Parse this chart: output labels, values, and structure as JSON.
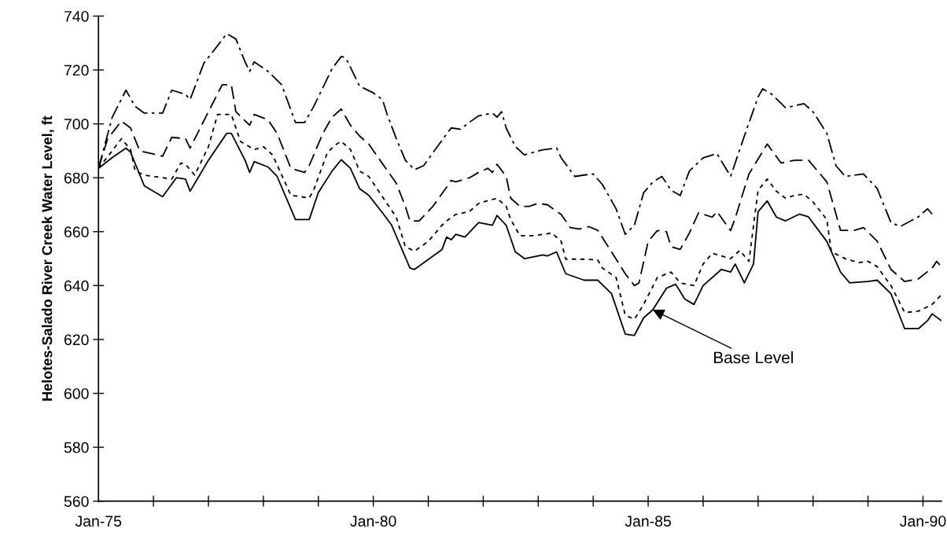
{
  "chart_data": {
    "type": "line",
    "ylabel": "Helotes-Salado River Creek Water Level, ft",
    "xlim": [
      "1975-01",
      "1990-05"
    ],
    "ylim": [
      560,
      740
    ],
    "xticks": [
      {
        "value": "1975-01",
        "label": "Jan-75"
      },
      {
        "value": "1976-01",
        "label": null
      },
      {
        "value": "1977-01",
        "label": null
      },
      {
        "value": "1978-01",
        "label": null
      },
      {
        "value": "1979-01",
        "label": null
      },
      {
        "value": "1980-01",
        "label": "Jan-80"
      },
      {
        "value": "1981-01",
        "label": null
      },
      {
        "value": "1982-01",
        "label": null
      },
      {
        "value": "1983-01",
        "label": null
      },
      {
        "value": "1984-01",
        "label": null
      },
      {
        "value": "1985-01",
        "label": "Jan-85"
      },
      {
        "value": "1986-01",
        "label": null
      },
      {
        "value": "1987-01",
        "label": null
      },
      {
        "value": "1988-01",
        "label": null
      },
      {
        "value": "1989-01",
        "label": null
      },
      {
        "value": "1990-01",
        "label": "Jan-90"
      }
    ],
    "yticks": [
      560,
      580,
      600,
      620,
      640,
      660,
      680,
      700,
      720,
      740
    ],
    "annotations": [
      {
        "text": "Base Level",
        "x": "1985-02",
        "y": 631
      }
    ],
    "series": [
      {
        "color": "#000000",
        "line_style": "solid",
        "x": [
          "1975-01",
          "1975-04",
          "1975-07",
          "1975-08",
          "1975-11",
          "1976-03",
          "1976-06",
          "1976-08",
          "1976-09",
          "1977-01",
          "1977-05",
          "1977-06",
          "1977-09",
          "1977-10",
          "1977-11",
          "1978-02",
          "1978-04",
          "1978-08",
          "1978-11",
          "1979-01",
          "1979-04",
          "1979-06",
          "1979-08",
          "1979-10",
          "1979-12",
          "1980-03",
          "1980-05",
          "1980-09",
          "1980-10",
          "1981-04",
          "1981-05",
          "1981-06",
          "1981-07",
          "1981-09",
          "1981-12",
          "1982-03",
          "1982-04",
          "1982-06",
          "1982-08",
          "1982-10",
          "1983-02",
          "1983-03",
          "1983-05",
          "1983-07",
          "1983-11",
          "1984-02",
          "1984-05",
          "1984-08",
          "1984-10",
          "1984-12",
          "1985-02",
          "1985-05",
          "1985-07",
          "1985-09",
          "1985-11",
          "1986-01",
          "1986-05",
          "1986-07",
          "1986-08",
          "1986-10",
          "1986-12",
          "1987-01",
          "1987-03",
          "1987-05",
          "1987-07",
          "1987-10",
          "1987-12",
          "1988-04",
          "1988-07",
          "1988-09",
          "1989-01",
          "1989-03",
          "1989-06",
          "1989-09",
          "1989-12",
          "1990-02",
          "1990-03",
          "1990-05"
        ],
        "values": [
          683.5,
          687.5,
          691,
          689.5,
          677,
          673,
          680,
          679.5,
          675,
          686.5,
          696.5,
          696.5,
          686.5,
          682,
          686,
          684,
          680.5,
          664.5,
          664.5,
          674.5,
          682.5,
          686.7,
          683.5,
          676,
          673.5,
          667,
          662.4,
          646.5,
          646,
          653.4,
          658,
          657,
          659,
          658,
          663.4,
          662.4,
          666,
          662.4,
          652.5,
          650,
          651.4,
          651,
          652.5,
          644.4,
          642,
          642,
          637,
          622,
          621.5,
          628,
          631,
          639,
          640.5,
          635,
          633,
          640,
          646,
          645,
          648,
          641,
          648,
          667.4,
          671.4,
          665.4,
          664,
          666.5,
          665.5,
          656.4,
          645,
          641,
          641.5,
          642,
          637,
          624,
          624,
          627,
          629.5,
          627
        ]
      },
      {
        "color": "#000000",
        "line_style": "dotted",
        "x": [
          "1975-01",
          "1975-04",
          "1975-06",
          "1975-08",
          "1975-09",
          "1975-11",
          "1976-05",
          "1976-07",
          "1976-08",
          "1976-10",
          "1977-01",
          "1977-03",
          "1977-06",
          "1977-08",
          "1977-11",
          "1978-01",
          "1978-03",
          "1978-07",
          "1978-11",
          "1978-12",
          "1979-03",
          "1979-05",
          "1979-06",
          "1979-08",
          "1979-10",
          "1979-12",
          "1980-06",
          "1980-08",
          "1980-10",
          "1981-01",
          "1981-04",
          "1981-05",
          "1981-07",
          "1981-10",
          "1981-12",
          "1982-02",
          "1982-04",
          "1982-06",
          "1982-07",
          "1982-09",
          "1982-12",
          "1983-02",
          "1983-04",
          "1983-06",
          "1983-07",
          "1983-11",
          "1984-02",
          "1984-03",
          "1984-06",
          "1984-08",
          "1984-10",
          "1984-12",
          "1985-03",
          "1985-06",
          "1985-08",
          "1985-11",
          "1986-01",
          "1986-03",
          "1986-07",
          "1986-09",
          "1986-11",
          "1987-01",
          "1987-03",
          "1987-05",
          "1987-07",
          "1987-09",
          "1987-11",
          "1988-01",
          "1988-04",
          "1988-05",
          "1988-08",
          "1988-11",
          "1989-01",
          "1989-03",
          "1989-06",
          "1989-09",
          "1989-12",
          "1990-03",
          "1990-05"
        ],
        "values": [
          683.5,
          690,
          694.5,
          690.5,
          682.5,
          681,
          679.5,
          685.5,
          685,
          681,
          691.5,
          703.5,
          703.5,
          693.5,
          690.5,
          691.5,
          688.5,
          673.5,
          672.5,
          675.5,
          689.5,
          692.5,
          693.5,
          690.5,
          682.5,
          680.5,
          665.4,
          654.4,
          652.8,
          656.4,
          662.4,
          664,
          666.4,
          667.5,
          670.5,
          671.5,
          672.4,
          669.4,
          664.5,
          658.5,
          658.5,
          659,
          659.5,
          656.4,
          649.8,
          649.8,
          649.5,
          646.5,
          643,
          629,
          627.5,
          633,
          643,
          645,
          641,
          640,
          648,
          652,
          650,
          653,
          649,
          675.4,
          679.5,
          675,
          672.4,
          673.5,
          673.9,
          671,
          664.5,
          652.5,
          650,
          648.5,
          649,
          647,
          640,
          630,
          630.5,
          633,
          636.5
        ]
      },
      {
        "color": "#000000",
        "line_style": "dashed",
        "x": [
          "1975-01",
          "1975-03",
          "1975-06",
          "1975-08",
          "1975-10",
          "1976-03",
          "1976-05",
          "1976-08",
          "1976-09",
          "1977-01",
          "1977-04",
          "1977-06",
          "1977-07",
          "1977-10",
          "1977-11",
          "1978-02",
          "1978-04",
          "1978-07",
          "1978-10",
          "1978-11",
          "1979-02",
          "1979-04",
          "1979-06",
          "1979-08",
          "1979-10",
          "1979-12",
          "1980-06",
          "1980-08",
          "1980-09",
          "1980-11",
          "1981-02",
          "1981-05",
          "1981-06",
          "1981-07",
          "1981-10",
          "1981-12",
          "1982-02",
          "1982-03",
          "1982-04",
          "1982-06",
          "1982-07",
          "1982-09",
          "1982-11",
          "1983-01",
          "1983-03",
          "1983-06",
          "1983-08",
          "1983-10",
          "1983-12",
          "1984-02",
          "1984-05",
          "1984-08",
          "1984-10",
          "1984-11",
          "1985-01",
          "1985-03",
          "1985-05",
          "1985-06",
          "1985-08",
          "1985-10",
          "1985-12",
          "1986-03",
          "1986-04",
          "1986-07",
          "1986-08",
          "1986-11",
          "1987-03",
          "1987-06",
          "1987-09",
          "1987-12",
          "1988-04",
          "1988-07",
          "1988-10",
          "1988-12",
          "1989-03",
          "1989-06",
          "1989-09",
          "1989-12",
          "1990-03",
          "1990-04",
          "1990-05"
        ],
        "values": [
          683.5,
          694.5,
          701,
          698.5,
          690,
          688,
          695,
          694.5,
          691,
          704.5,
          714.5,
          714.5,
          704.5,
          699.5,
          703.5,
          701.5,
          696.5,
          683.5,
          682,
          684.5,
          696.5,
          702.5,
          705.5,
          699.5,
          695.5,
          692.5,
          678,
          669.4,
          664,
          664,
          669.4,
          676.5,
          679,
          678.5,
          680,
          682,
          683.5,
          682,
          685,
          680.5,
          672.4,
          669.4,
          669.4,
          670.5,
          670,
          666.4,
          661.5,
          661,
          661.9,
          660.5,
          652.5,
          644.4,
          640,
          641,
          656.4,
          660.4,
          660,
          654.4,
          653.4,
          659.5,
          667,
          665.4,
          667.5,
          660.4,
          665,
          681.4,
          692.5,
          685.5,
          686.5,
          686.5,
          678.5,
          660.5,
          660.5,
          661.5,
          656.5,
          646,
          641.5,
          642.5,
          646.5,
          649,
          647
        ]
      },
      {
        "color": "#000000",
        "line_style": "dashdot",
        "x": [
          "1975-01",
          "1975-04",
          "1975-07",
          "1975-09",
          "1975-11",
          "1976-03",
          "1976-05",
          "1976-08",
          "1976-09",
          "1976-12",
          "1977-03",
          "1977-05",
          "1977-07",
          "1977-09",
          "1977-10",
          "1977-11",
          "1978-02",
          "1978-05",
          "1978-08",
          "1978-10",
          "1978-12",
          "1979-04",
          "1979-06",
          "1979-07",
          "1979-09",
          "1979-10",
          "1980-01",
          "1980-03",
          "1980-04",
          "1980-06",
          "1980-08",
          "1980-10",
          "1980-12",
          "1981-03",
          "1981-06",
          "1981-08",
          "1981-10",
          "1981-12",
          "1982-03",
          "1982-04",
          "1982-05",
          "1982-06",
          "1982-08",
          "1982-10",
          "1983-02",
          "1983-05",
          "1983-06",
          "1983-09",
          "1983-11",
          "1984-01",
          "1984-03",
          "1984-06",
          "1984-08",
          "1984-10",
          "1984-12",
          "1985-02",
          "1985-04",
          "1985-06",
          "1985-08",
          "1985-10",
          "1986-01",
          "1986-04",
          "1986-07",
          "1986-10",
          "1987-01",
          "1987-02",
          "1987-04",
          "1987-07",
          "1987-11",
          "1988-01",
          "1988-04",
          "1988-06",
          "1988-08",
          "1988-12",
          "1989-03",
          "1989-06",
          "1989-08",
          "1989-12",
          "1990-02",
          "1990-03"
        ],
        "values": [
          683.5,
          702.5,
          712.5,
          706.5,
          704,
          704,
          712.5,
          711,
          709,
          722.5,
          729,
          733.5,
          731.5,
          723,
          719.5,
          723,
          719.5,
          714.5,
          700.5,
          700.5,
          706.5,
          720.5,
          725,
          724.5,
          717.5,
          714,
          711.5,
          709,
          703.6,
          694.6,
          686.5,
          683,
          684.5,
          691.6,
          698.5,
          698,
          700.6,
          703,
          704,
          702.5,
          704.5,
          698.5,
          691.6,
          688.5,
          690.4,
          691,
          687.4,
          680.5,
          681,
          681.4,
          677.5,
          668.5,
          659,
          662.4,
          674.4,
          678.4,
          680.5,
          675.4,
          673.4,
          682.5,
          687.4,
          689,
          680.5,
          695.5,
          710,
          713,
          711,
          706,
          707.5,
          704.5,
          696.5,
          684.5,
          680.5,
          681.4,
          676,
          663.4,
          661.9,
          665.5,
          668.5,
          666.5
        ]
      }
    ]
  }
}
